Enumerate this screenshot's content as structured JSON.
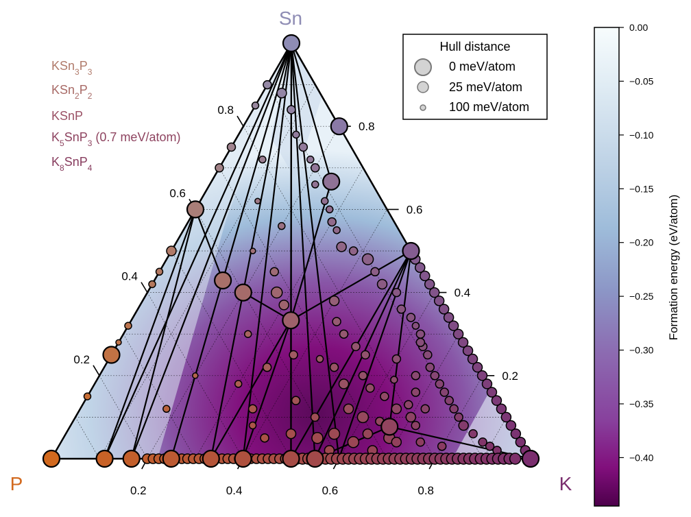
{
  "chart_data": {
    "type": "scatter",
    "subtype": "ternary phase diagram",
    "vertices": {
      "top": {
        "label": "Sn",
        "color": "#8e8cb4"
      },
      "left": {
        "label": "P",
        "color": "#d2691e"
      },
      "right": {
        "label": "K",
        "color": "#7a2e6e"
      }
    },
    "axes_ticks": {
      "left": [
        "0.2",
        "0.4",
        "0.6",
        "0.8"
      ],
      "right": [
        "0.8",
        "0.6",
        "0.4",
        "0.2"
      ],
      "bottom": [
        "0.2",
        "0.4",
        "0.6",
        "0.8"
      ]
    },
    "legend": {
      "title": "Hull distance",
      "entries": [
        {
          "label": "0 meV/atom",
          "size": "large"
        },
        {
          "label": "25 meV/atom",
          "size": "medium"
        },
        {
          "label": "100 meV/atom",
          "size": "small"
        }
      ]
    },
    "colorbar": {
      "label": "Formation energy (eV/atom)",
      "ticks": [
        "0.00",
        "−0.05",
        "−0.10",
        "−0.15",
        "−0.20",
        "−0.25",
        "−0.30",
        "−0.35",
        "−0.40"
      ],
      "tick_values": [
        0,
        -0.05,
        -0.1,
        -0.15,
        -0.2,
        -0.25,
        -0.3,
        -0.35,
        -0.4
      ],
      "range": [
        -0.445,
        0.0
      ],
      "colormap": "BuPu_r"
    },
    "phase_labels": [
      {
        "base": "KSn",
        "sub1": "3",
        "mid": "P",
        "sub2": "3",
        "suffix": "",
        "color": "#b07a6a"
      },
      {
        "base": "KSn",
        "sub1": "2",
        "mid": "P",
        "sub2": "2",
        "suffix": "",
        "color": "#a86a66"
      },
      {
        "base": "KSnP",
        "sub1": "",
        "mid": "",
        "sub2": "",
        "suffix": "",
        "color": "#9a5064"
      },
      {
        "base": "K",
        "sub1": "5",
        "mid": "SnP",
        "sub2": "3",
        "suffix": " (0.7 meV/atom)",
        "color": "#8e4460"
      },
      {
        "base": "K",
        "sub1": "8",
        "mid": "SnP",
        "sub2": "4",
        "suffix": "",
        "color": "#873c5e"
      }
    ],
    "stable_points": [
      {
        "K": 0.0,
        "Sn": 1.0
      },
      {
        "K": 0.0,
        "Sn": 0.0
      },
      {
        "K": 1.0,
        "Sn": 0.0
      },
      {
        "K": 0.0,
        "Sn": 0.6
      },
      {
        "K": 0.0,
        "Sn": 0.25
      },
      {
        "K": 0.2,
        "Sn": 0.8
      },
      {
        "K": 0.25,
        "Sn": 0.667
      },
      {
        "K": 0.5,
        "Sn": 0.5
      },
      {
        "K": 0.143,
        "Sn": 0.429
      },
      {
        "K": 0.2,
        "Sn": 0.4
      },
      {
        "K": 0.333,
        "Sn": 0.333
      },
      {
        "K": 0.111,
        "Sn": 0.0
      },
      {
        "K": 0.167,
        "Sn": 0.0
      },
      {
        "K": 0.25,
        "Sn": 0.0
      },
      {
        "K": 0.333,
        "Sn": 0.0
      },
      {
        "K": 0.4,
        "Sn": 0.0
      },
      {
        "K": 0.5,
        "Sn": 0.0
      },
      {
        "K": 0.55,
        "Sn": 0.0
      },
      {
        "K": 0.667,
        "Sn": 0.077
      }
    ]
  }
}
